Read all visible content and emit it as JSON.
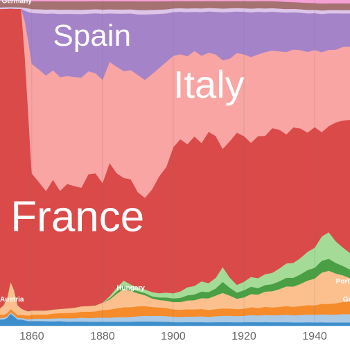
{
  "chart_data": {
    "type": "area",
    "stacked": true,
    "normalized": true,
    "xlim": [
      1851,
      1950
    ],
    "ylim": [
      0,
      100
    ],
    "grid": true,
    "legend": "inline labels",
    "x_ticks": [
      "1860",
      "1880",
      "1900",
      "1920",
      "1940"
    ],
    "x_tick_values": [
      1860,
      1880,
      1900,
      1920,
      1940
    ],
    "x": [
      1851,
      1852,
      1853,
      1854,
      1855,
      1856,
      1857,
      1858,
      1859,
      1860,
      1862,
      1864,
      1866,
      1868,
      1870,
      1872,
      1874,
      1876,
      1878,
      1880,
      1882,
      1884,
      1886,
      1888,
      1890,
      1892,
      1894,
      1896,
      1898,
      1900,
      1902,
      1904,
      1906,
      1908,
      1910,
      1912,
      1914,
      1916,
      1918,
      1920,
      1922,
      1924,
      1926,
      1928,
      1930,
      1932,
      1934,
      1936,
      1938,
      1940,
      1942,
      1944,
      1946,
      1948,
      1950
    ],
    "series": [
      {
        "name": "Austria",
        "color": "#3d8fcc",
        "label_size": "small",
        "values": [
          2,
          2,
          2.5,
          4,
          3,
          2,
          2,
          1.6,
          1.3,
          1.2,
          1.2,
          1.1,
          1.1,
          1.1,
          1,
          1,
          1,
          1,
          1,
          1,
          1,
          1,
          1,
          1,
          1,
          1,
          1,
          1,
          1,
          1,
          1,
          1,
          1,
          1,
          1,
          1,
          1,
          1,
          1,
          1,
          1,
          1,
          1,
          1,
          1,
          1,
          1,
          1,
          1,
          1,
          1,
          1,
          1,
          1,
          1
        ]
      },
      {
        "name": "",
        "color": "#aac9e4",
        "label_size": "small",
        "values": [
          0.5,
          0.5,
          0.5,
          0.5,
          0.5,
          0.5,
          0.5,
          0.5,
          0.5,
          0.6,
          0.6,
          0.6,
          0.7,
          0.7,
          0.8,
          0.8,
          0.9,
          0.9,
          1,
          1,
          1,
          1.1,
          1.1,
          1.2,
          1.2,
          1.3,
          1.3,
          1.4,
          1.4,
          1.5,
          1.5,
          1.5,
          1.6,
          1.6,
          1.6,
          1.7,
          1.7,
          1.8,
          1.8,
          1.8,
          1.9,
          1.9,
          2,
          2,
          2,
          2.1,
          2.1,
          2.2,
          2.2,
          2.3,
          2.3,
          2.4,
          2.4,
          2.5,
          2.5
        ]
      },
      {
        "name": "Hungary",
        "color": "#f58b2a",
        "label_size": "small",
        "values": [
          1,
          1,
          1,
          1,
          1,
          1,
          1,
          1,
          1,
          1,
          1,
          1,
          1.2,
          1.2,
          1.3,
          1.3,
          1.4,
          1.5,
          1.6,
          1.8,
          2,
          2.2,
          2.4,
          2.4,
          2.3,
          2.2,
          2.1,
          2,
          2,
          2,
          2,
          2,
          2,
          2,
          2,
          2,
          2,
          2,
          2,
          2,
          2.1,
          2.1,
          2.2,
          2.2,
          2.3,
          2.4,
          2.5,
          2.6,
          2.7,
          2.8,
          3,
          3.2,
          3.4,
          3.6,
          3.8
        ]
      },
      {
        "name": "Portugal",
        "color": "#fcc08f",
        "label_size": "small",
        "values": [
          2,
          3,
          5,
          9,
          7,
          3,
          2,
          1.5,
          1.2,
          1.1,
          1,
          1,
          1,
          1,
          1.1,
          1.2,
          1.3,
          1.4,
          1.5,
          1.8,
          2.5,
          3.5,
          4.5,
          4,
          3,
          2.5,
          2,
          1.8,
          1.8,
          2,
          2.2,
          2.4,
          2.6,
          3,
          3.4,
          3.8,
          4.2,
          3.6,
          3,
          3.2,
          3.5,
          3.8,
          4.2,
          4.6,
          5,
          5.5,
          6,
          6.5,
          7,
          8,
          9,
          10,
          9,
          8,
          7
        ]
      },
      {
        "name": "",
        "color": "#4a9e44",
        "label_size": "small",
        "values": [
          0,
          0,
          0,
          0,
          0,
          0,
          0,
          0,
          0,
          0,
          0,
          0,
          0,
          0,
          0,
          0,
          0,
          0,
          0,
          0,
          0.3,
          0.5,
          0.8,
          0.6,
          0.5,
          0.5,
          0.5,
          0.6,
          0.8,
          1,
          1.2,
          1.4,
          1.6,
          1.8,
          1.8,
          2,
          3,
          2.2,
          1.8,
          2,
          2,
          1.8,
          1.8,
          2,
          2.2,
          2.4,
          2.6,
          2.8,
          3,
          3.2,
          3.4,
          3.6,
          3.2,
          2.8,
          2.6
        ]
      },
      {
        "name": "",
        "color": "#a4dc97",
        "label_size": "small",
        "values": [
          0,
          0,
          0,
          0,
          0,
          0,
          0,
          0,
          0,
          0,
          0,
          0,
          0,
          0,
          0,
          0,
          0,
          0,
          0,
          0,
          0.5,
          1,
          1.2,
          1,
          0.8,
          0.8,
          1,
          1,
          1.2,
          1.4,
          1.8,
          2.2,
          2.4,
          2.8,
          2.6,
          3,
          4,
          2.8,
          2.2,
          2.4,
          2.6,
          2.8,
          3,
          3.2,
          3.6,
          4,
          4.4,
          4.8,
          5.2,
          6,
          7,
          8,
          6.5,
          5.5,
          5
        ]
      },
      {
        "name": "France",
        "color": "#d94a48",
        "label_size": "big",
        "values": [
          94,
          94,
          93,
          90,
          91,
          94,
          95,
          75,
          55,
          35,
          32,
          29,
          32,
          28,
          30,
          29,
          28,
          32,
          33,
          29,
          33,
          28,
          25,
          26,
          22,
          21,
          24,
          28,
          31,
          40,
          43,
          39,
          42,
          38,
          44,
          40,
          32,
          38,
          44,
          41,
          36,
          40,
          38,
          41,
          39,
          36,
          40,
          38,
          34,
          36,
          30,
          32,
          36,
          38,
          40
        ]
      },
      {
        "name": "Italy",
        "color": "#f8a5a3",
        "label_size": "big",
        "values": [
          0,
          0,
          0,
          0,
          0,
          0,
          0,
          10,
          20,
          28,
          28,
          28,
          27,
          27,
          26,
          26,
          26,
          25,
          25,
          25,
          25,
          26,
          26,
          27,
          27,
          27,
          27,
          26,
          26,
          25,
          24,
          24,
          24,
          24,
          23,
          23,
          24,
          23,
          23,
          23,
          23,
          23,
          23,
          22,
          22,
          23,
          23,
          23,
          23,
          23,
          23,
          23,
          22,
          22,
          22
        ]
      },
      {
        "name": "Spain",
        "color": "#a583c9",
        "label_size": "big",
        "values": [
          0,
          0,
          0,
          0,
          0,
          0,
          0,
          3,
          8,
          13,
          14,
          15,
          14,
          15,
          15,
          15,
          15,
          14,
          15,
          16,
          12,
          13,
          14,
          14,
          14,
          15,
          14,
          13,
          12,
          12,
          12,
          12,
          11,
          12,
          12,
          12,
          13,
          13,
          12,
          12,
          12,
          12,
          11,
          11,
          11,
          11,
          11,
          11,
          11,
          11,
          11,
          11,
          11,
          10,
          10
        ]
      },
      {
        "name": "",
        "color": "#dcc5e8",
        "label_size": "small",
        "values": [
          0.5,
          0.5,
          0.5,
          0.5,
          0.5,
          0.5,
          0.5,
          0.8,
          1,
          1,
          1,
          1,
          1,
          1,
          1,
          1,
          1,
          1,
          1,
          1,
          1,
          1,
          1,
          1,
          1,
          1,
          1,
          1,
          1,
          1,
          1,
          1,
          1,
          1,
          1,
          1,
          1,
          1,
          1,
          1,
          1,
          1,
          1,
          1,
          1,
          1,
          1,
          1,
          1,
          1,
          1,
          1,
          1,
          1,
          1
        ]
      },
      {
        "name": "Germany",
        "color": "#a57171",
        "label_size": "small",
        "values": [
          2,
          2,
          2,
          2,
          2,
          2,
          2,
          2,
          2,
          2,
          2,
          2,
          2,
          2,
          2,
          2,
          2,
          2,
          2,
          2,
          2,
          2,
          2,
          2,
          2,
          2,
          2,
          2,
          2,
          2,
          2,
          2,
          2,
          2,
          2,
          2,
          2,
          2,
          2,
          2,
          2,
          2,
          2,
          2,
          2,
          2,
          2,
          2,
          2,
          2,
          2,
          2,
          2,
          2,
          2
        ]
      },
      {
        "name": "",
        "color": "#f5a1d6",
        "label_size": "small",
        "values": [
          0.3,
          0.3,
          0.3,
          0.3,
          0.3,
          0.3,
          0.3,
          0.3,
          0.3,
          0.3,
          0.3,
          0.3,
          0.3,
          0.3,
          0.3,
          0.3,
          0.3,
          0.3,
          0.3,
          0.3,
          0.3,
          0.3,
          0.3,
          0.3,
          0.3,
          0.3,
          0.3,
          0.3,
          0.3,
          0.3,
          0.3,
          0.3,
          0.3,
          0.3,
          0.3,
          0.3,
          0.3,
          0.3,
          0.3,
          0.3,
          0.3,
          0.3,
          0.3,
          0.3,
          0.4,
          0.5,
          0.6,
          0.7,
          0.8,
          0.9,
          1,
          1,
          1,
          1,
          1
        ]
      }
    ],
    "labels": [
      {
        "text": "Germany",
        "series": "Germany",
        "x": 1851.5,
        "y": 99,
        "size": "small"
      },
      {
        "text": "Spain",
        "series": "Spain",
        "x": 1866,
        "y": 86,
        "size": "big"
      },
      {
        "text": "Italy",
        "series": "Italy",
        "x": 1900,
        "y": 70,
        "size": "big"
      },
      {
        "text": "France",
        "series": "France",
        "x": 1854,
        "y": 29,
        "size": "big"
      },
      {
        "text": "Hungary",
        "series": "Hungary",
        "x": 1884,
        "y": 11,
        "size": "small"
      },
      {
        "text": "Austria",
        "series": "Austria",
        "x": 1851,
        "y": 7.5,
        "size": "small"
      },
      {
        "text": "Portug",
        "series": "Portugal",
        "x": 1946,
        "y": 13,
        "size": "small"
      },
      {
        "text": "Gree",
        "series": "",
        "x": 1948,
        "y": 7.5,
        "size": "small"
      }
    ]
  }
}
